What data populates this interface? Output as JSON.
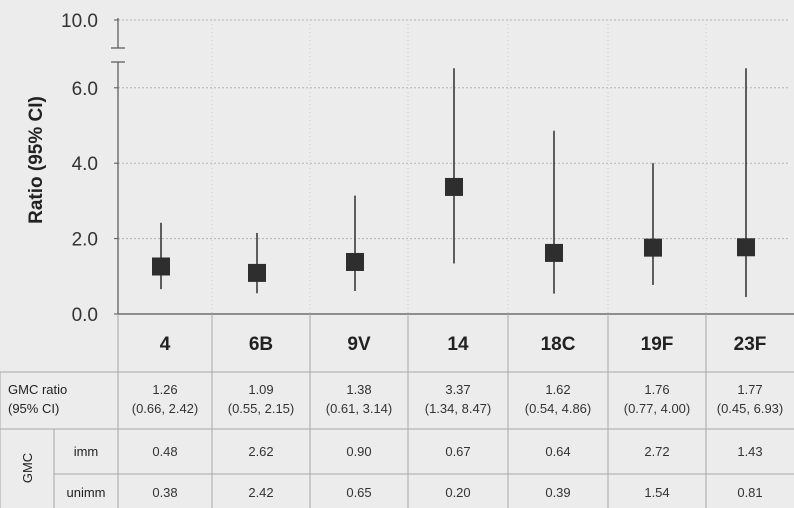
{
  "chart_data": {
    "type": "scatter",
    "ylabel": "Ratio (95% CI)",
    "ylim": [
      0,
      10
    ],
    "axis_break": [
      6.5,
      9.5
    ],
    "yticks": [
      "0.0",
      "2.0",
      "4.0",
      "6.0",
      "10.0"
    ],
    "grid": true,
    "categories": [
      "4",
      "6B",
      "9V",
      "14",
      "18C",
      "19F",
      "23F"
    ],
    "series": [
      {
        "values": [
          1.26,
          1.09,
          1.38,
          3.37,
          1.62,
          1.76,
          1.77
        ],
        "ci_low": [
          0.66,
          0.55,
          0.61,
          1.34,
          0.54,
          0.77,
          0.45
        ],
        "ci_high": [
          2.42,
          2.15,
          3.14,
          8.47,
          4.86,
          4.0,
          6.93
        ]
      }
    ]
  },
  "table": {
    "gmc_ratio_label_1": "GMC ratio",
    "gmc_ratio_label_2": "(95% CI)",
    "gmc_group_label": "GMC",
    "rows": [
      {
        "label": "imm",
        "values": [
          "0.48",
          "2.62",
          "0.90",
          "0.67",
          "0.64",
          "2.72",
          "1.43"
        ]
      },
      {
        "label": "unimm",
        "values": [
          "0.38",
          "2.42",
          "0.65",
          "0.20",
          "0.39",
          "1.54",
          "0.81"
        ]
      }
    ],
    "ratio_values": [
      "1.26",
      "1.09",
      "1.38",
      "3.37",
      "1.62",
      "1.76",
      "1.77"
    ],
    "ratio_cis": [
      "(0.66, 2.42)",
      "(0.55, 2.15)",
      "(0.61, 3.14)",
      "(1.34, 8.47)",
      "(0.54, 4.86)",
      "(0.77, 4.00)",
      "(0.45, 6.93)"
    ]
  },
  "colors": {
    "marker": "#2e2e2e",
    "line": "#3a3a3a",
    "grid": "#b5b5b5",
    "table_line": "#a8a8a8"
  }
}
